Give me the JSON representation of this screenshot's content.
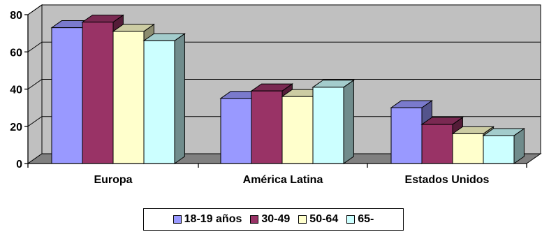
{
  "chart_data": {
    "type": "bar",
    "style": "3d-clustered-column",
    "categories": [
      "Europa",
      "América Latina",
      "Estados Unidos"
    ],
    "series": [
      {
        "name": "18-19 años",
        "values": [
          73,
          35,
          30
        ],
        "color": "#9999ff"
      },
      {
        "name": "30-49",
        "values": [
          76,
          39,
          21
        ],
        "color": "#993366"
      },
      {
        "name": "50-64",
        "values": [
          71,
          36,
          16
        ],
        "color": "#ffffcc"
      },
      {
        "name": "65-",
        "values": [
          66,
          41,
          15
        ],
        "color": "#ccffff"
      }
    ],
    "yticks": [
      "0",
      "20",
      "40",
      "60",
      "80"
    ],
    "ylim": [
      0,
      80
    ],
    "grid": true,
    "legend_position": "bottom",
    "wall_color": "#c0c0c0",
    "floor_color": "#808080"
  }
}
